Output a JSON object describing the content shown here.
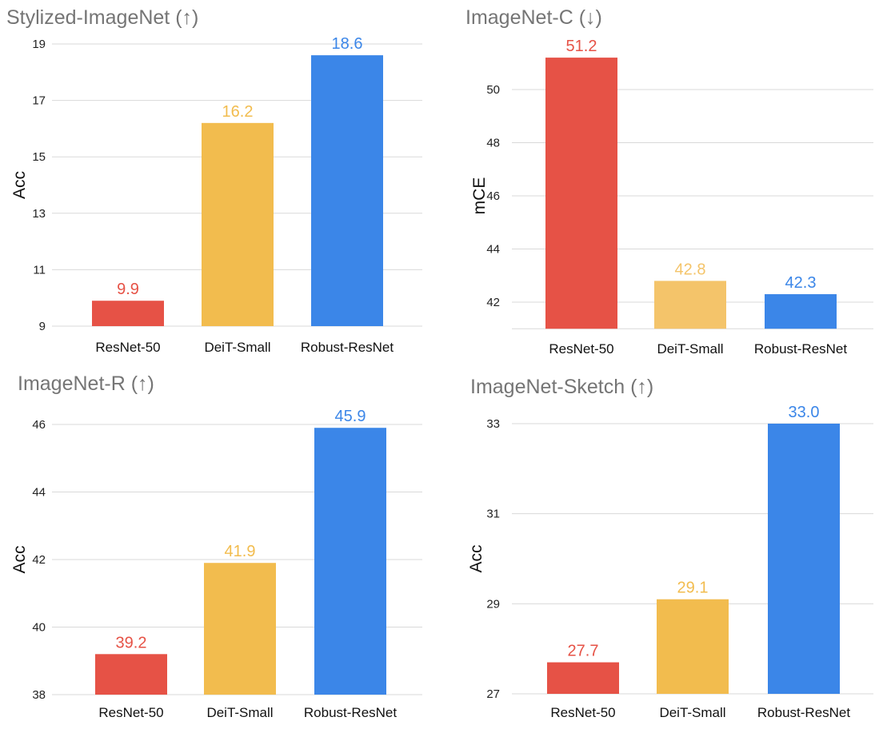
{
  "colors": {
    "resnet": "#e65246",
    "deit": "#f2bc4e",
    "deit_light": "#f4c46a",
    "robust": "#3b86e8"
  },
  "chart_data": [
    {
      "id": "stylized",
      "type": "bar",
      "title": "Stylized-ImageNet  (↑)",
      "ylabel": "Acc",
      "categories": [
        "ResNet-50",
        "DeiT-Small",
        "Robust-ResNet"
      ],
      "values": [
        9.9,
        16.2,
        18.6
      ],
      "value_labels": [
        "9.9",
        "16.2",
        "18.6"
      ],
      "bar_colors": [
        "#e65246",
        "#f2bc4e",
        "#3b86e8"
      ],
      "yticks": [
        "9",
        "11",
        "13",
        "15",
        "17",
        "19"
      ],
      "ylim": [
        9,
        19
      ],
      "grid": true
    },
    {
      "id": "imagenet-c",
      "type": "bar",
      "title": "ImageNet-C (↓)",
      "ylabel": "mCE",
      "categories": [
        "ResNet-50",
        "DeiT-Small",
        "Robust-ResNet"
      ],
      "values": [
        51.2,
        42.8,
        42.3
      ],
      "value_labels": [
        "51.2",
        "42.8",
        "42.3"
      ],
      "bar_colors": [
        "#e65246",
        "#f4c46a",
        "#3b86e8"
      ],
      "yticks": [
        "42",
        "44",
        "46",
        "48",
        "50"
      ],
      "ylim": [
        41,
        52
      ],
      "grid": true
    },
    {
      "id": "imagenet-r",
      "type": "bar",
      "title": "ImageNet-R (↑)",
      "ylabel": "Acc",
      "categories": [
        "ResNet-50",
        "DeiT-Small",
        "Robust-ResNet"
      ],
      "values": [
        39.2,
        41.9,
        45.9
      ],
      "value_labels": [
        "39.2",
        "41.9",
        "45.9"
      ],
      "bar_colors": [
        "#e65246",
        "#f2bc4e",
        "#3b86e8"
      ],
      "yticks": [
        "38",
        "40",
        "42",
        "44",
        "46"
      ],
      "ylim": [
        38,
        46
      ],
      "grid": true
    },
    {
      "id": "sketch",
      "type": "bar",
      "title": "ImageNet-Sketch (↑)",
      "ylabel": "Acc",
      "categories": [
        "ResNet-50",
        "DeiT-Small",
        "Robust-ResNet"
      ],
      "values": [
        27.7,
        29.1,
        33.0
      ],
      "value_labels": [
        "27.7",
        "29.1",
        "33.0"
      ],
      "bar_colors": [
        "#e65246",
        "#f2bc4e",
        "#3b86e8"
      ],
      "yticks": [
        "27",
        "29",
        "31",
        "33"
      ],
      "ylim": [
        27,
        33
      ],
      "grid": true
    }
  ]
}
